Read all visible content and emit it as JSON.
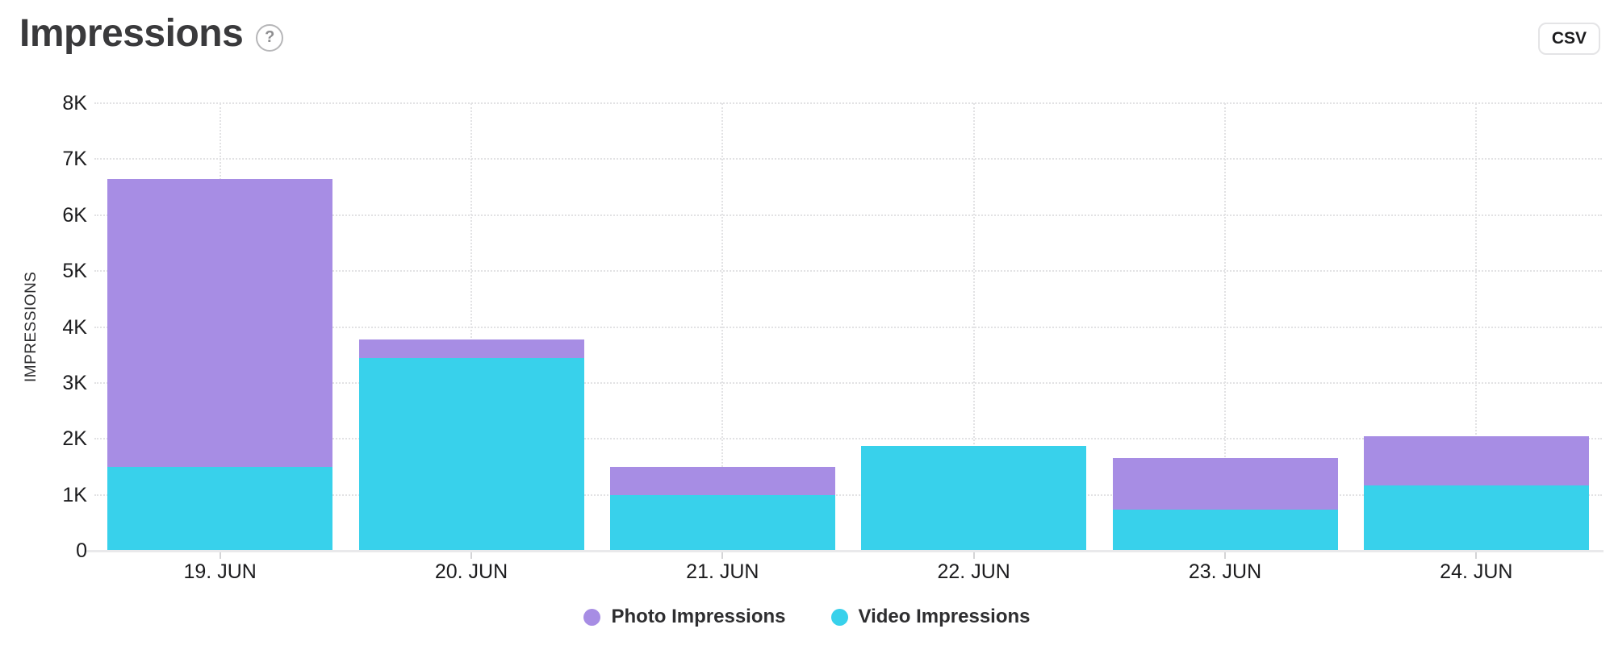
{
  "header": {
    "title": "Impressions",
    "help_glyph": "?",
    "csv_button_label": "CSV"
  },
  "chart_data": {
    "type": "bar",
    "stacked": true,
    "title": "Impressions",
    "ylabel": "IMPRESSIONS",
    "xlabel": "",
    "categories": [
      "19. JUN",
      "20. JUN",
      "21. JUN",
      "22. JUN",
      "23. JUN",
      "24. JUN"
    ],
    "series": [
      {
        "name": "Photo Impressions",
        "color": "#A78DE4",
        "values": [
          5150,
          330,
          510,
          0,
          915,
          880
        ]
      },
      {
        "name": "Video Impressions",
        "color": "#38D1EB",
        "values": [
          1500,
          3450,
          990,
          1880,
          740,
          1170
        ]
      }
    ],
    "ylim": [
      0,
      8000
    ],
    "ytick_step": 1000,
    "ytick_labels": [
      "0",
      "1K",
      "2K",
      "3K",
      "4K",
      "5K",
      "6K",
      "7K",
      "8K"
    ],
    "grid": "dotted horizontal and vertical",
    "legend_position": "bottom"
  }
}
